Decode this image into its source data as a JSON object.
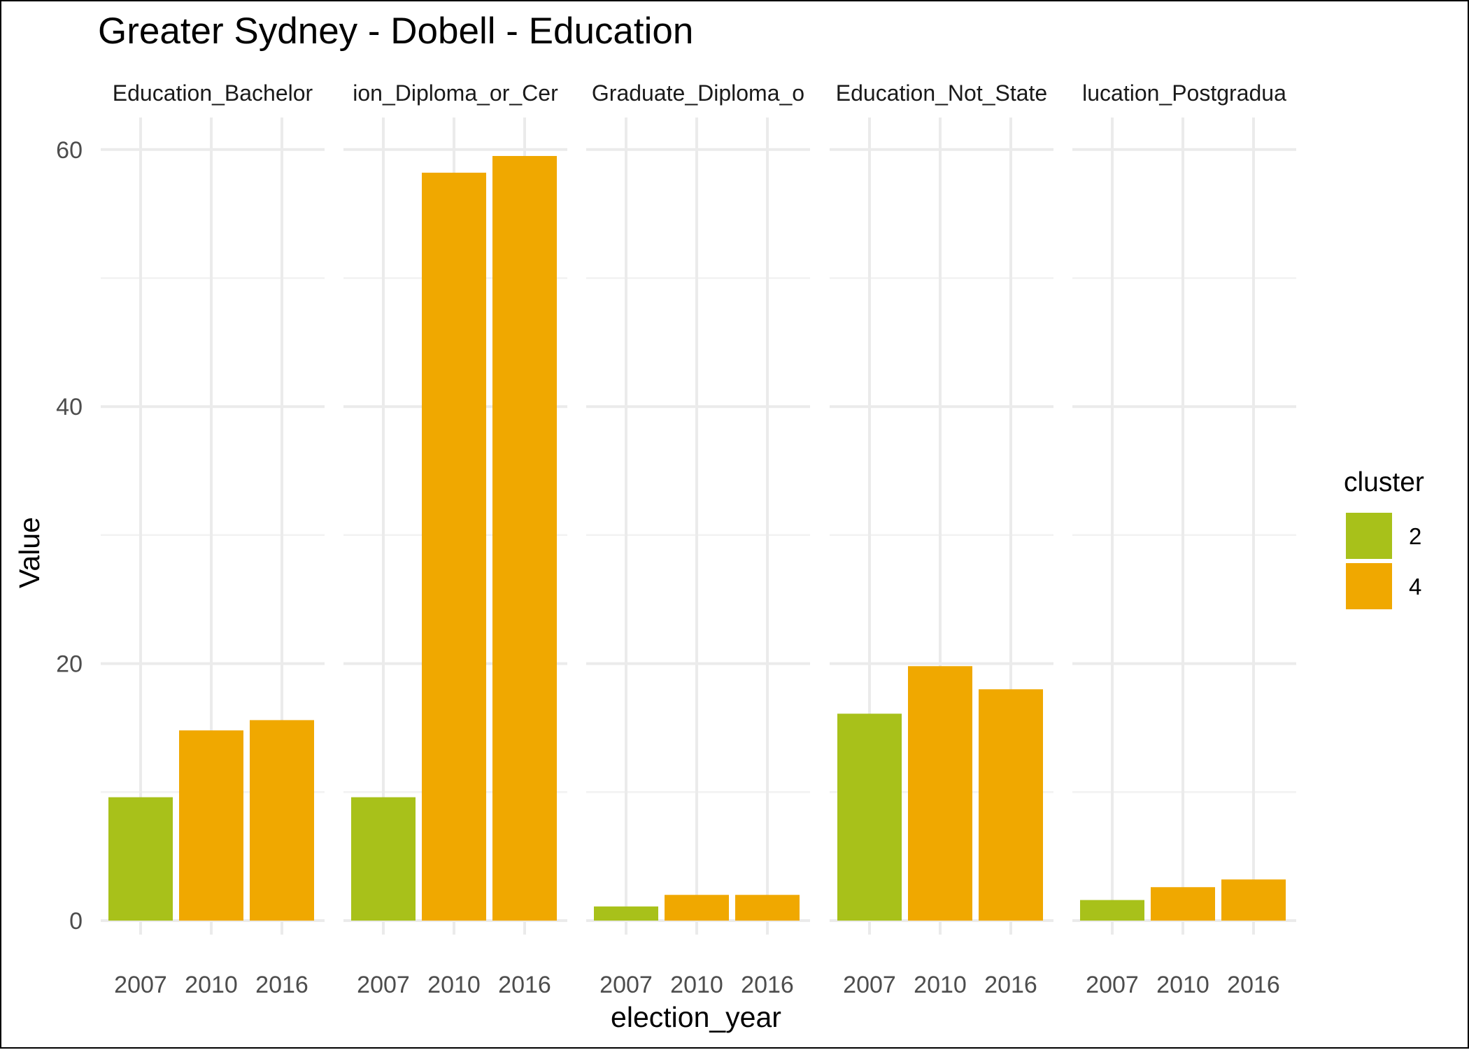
{
  "chart_data": {
    "type": "bar",
    "title": "Greater Sydney - Dobell - Education",
    "xlabel": "election_year",
    "ylabel": "Value",
    "ylim": [
      0,
      62.5
    ],
    "y_ticks": [
      0,
      20,
      40,
      60
    ],
    "grid": true,
    "categories": [
      "2007",
      "2010",
      "2016"
    ],
    "legend": {
      "title": "cluster",
      "position": "right",
      "entries": [
        {
          "label": "2",
          "color": "#A8C11A"
        },
        {
          "label": "4",
          "color": "#F0A800"
        }
      ]
    },
    "facets": [
      {
        "strip": "Education_Bachelor",
        "values": [
          9.6,
          14.8,
          15.6
        ],
        "cluster": [
          "2",
          "4",
          "4"
        ]
      },
      {
        "strip": "ion_Diploma_or_Cer",
        "values": [
          9.6,
          58.2,
          59.5
        ],
        "cluster": [
          "2",
          "4",
          "4"
        ]
      },
      {
        "strip": "Graduate_Diploma_o",
        "values": [
          1.1,
          2.0,
          2.0
        ],
        "cluster": [
          "2",
          "4",
          "4"
        ]
      },
      {
        "strip": "Education_Not_State",
        "values": [
          16.1,
          19.8,
          18.0
        ],
        "cluster": [
          "2",
          "4",
          "4"
        ]
      },
      {
        "strip": "lucation_Postgradua",
        "values": [
          1.6,
          2.6,
          3.2
        ],
        "cluster": [
          "2",
          "4",
          "4"
        ]
      }
    ]
  }
}
